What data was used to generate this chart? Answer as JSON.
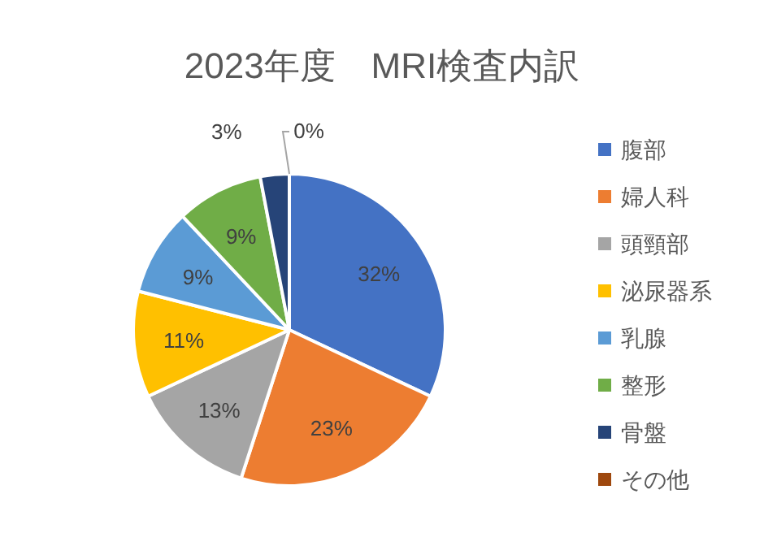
{
  "chart_data": {
    "type": "pie",
    "title": "2023年度　MRI検査内訳",
    "categories": [
      "腹部",
      "婦人科",
      "頭頸部",
      "泌尿器系",
      "乳腺",
      "整形",
      "骨盤",
      "その他"
    ],
    "values": [
      32,
      23,
      13,
      11,
      9,
      9,
      3,
      0
    ],
    "colors": [
      "#4472c4",
      "#ed7d31",
      "#a5a5a5",
      "#ffc000",
      "#5b9bd5",
      "#70ad47",
      "#264478",
      "#9e480e"
    ],
    "value_labels": [
      "32%",
      "23%",
      "13%",
      "11%",
      "9%",
      "9%",
      "3%",
      "0%"
    ],
    "legend": "right"
  }
}
